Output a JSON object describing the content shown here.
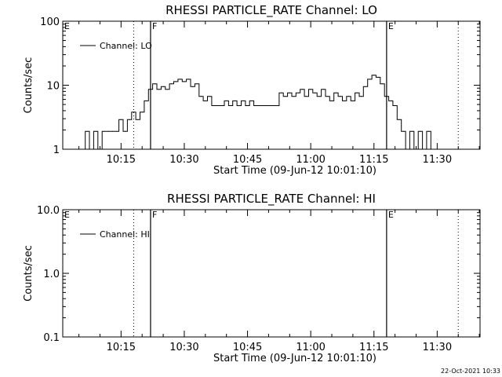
{
  "footer": {
    "timestamp": "22-Oct-2021 10:33"
  },
  "chart_data": [
    {
      "type": "line",
      "title": "RHESSI PARTICLE_RATE Channel: LO",
      "xlabel": "Start Time (09-Jun-12 10:01:10)",
      "ylabel": "Counts/sec",
      "yscale": "log",
      "xlim_minutes": [
        0,
        99
      ],
      "ylim": [
        1,
        100
      ],
      "xticks": [
        "10:15",
        "10:30",
        "10:45",
        "11:00",
        "11:15",
        "11:30"
      ],
      "yticks": [
        "1",
        "10",
        "100"
      ],
      "legend": {
        "label": "Channel: LO",
        "position": "top-left"
      },
      "markers": [
        {
          "label": "E",
          "time": "10:01",
          "style": "none"
        },
        {
          "label": "",
          "time": "10:18",
          "style": "dotted"
        },
        {
          "label": "F",
          "time": "10:22",
          "style": "solid"
        },
        {
          "label": "E",
          "time": "11:18",
          "style": "solid"
        },
        {
          "label": "",
          "time": "11:35",
          "style": "dotted"
        }
      ],
      "series": [
        {
          "name": "Channel: LO",
          "x": [
            "10:06",
            "10:07",
            "10:08",
            "10:09",
            "10:10",
            "10:11",
            "10:12",
            "10:13",
            "10:14",
            "10:15",
            "10:16",
            "10:17",
            "10:18",
            "10:19",
            "10:20",
            "10:21",
            "10:22",
            "10:23",
            "10:24",
            "10:25",
            "10:26",
            "10:27",
            "10:28",
            "10:29",
            "10:30",
            "10:31",
            "10:32",
            "10:33",
            "10:34",
            "10:35",
            "10:36",
            "10:37",
            "10:38",
            "10:39",
            "10:40",
            "10:41",
            "10:42",
            "10:43",
            "10:44",
            "10:45",
            "10:46",
            "10:47",
            "10:48",
            "10:49",
            "10:50",
            "10:51",
            "10:52",
            "10:53",
            "10:54",
            "10:55",
            "10:56",
            "10:57",
            "10:58",
            "10:59",
            "11:00",
            "11:01",
            "11:02",
            "11:03",
            "11:04",
            "11:05",
            "11:06",
            "11:07",
            "11:08",
            "11:09",
            "11:10",
            "11:11",
            "11:12",
            "11:13",
            "11:14",
            "11:15",
            "11:16",
            "11:17",
            "11:18",
            "11:19",
            "11:20",
            "11:21",
            "11:22",
            "11:23",
            "11:24",
            "11:25",
            "11:26",
            "11:27",
            "11:28",
            "11:29",
            "11:30",
            "11:31",
            "11:32",
            "11:33"
          ],
          "values": [
            1,
            1.9,
            1,
            1.9,
            1,
            1.9,
            1.9,
            1.9,
            1.9,
            2.9,
            1.9,
            2.9,
            3.8,
            2.9,
            3.8,
            5.7,
            8.6,
            10.5,
            8.6,
            9.5,
            8.6,
            10.5,
            11.4,
            12.4,
            11.4,
            12.4,
            9.5,
            10.5,
            6.7,
            5.7,
            6.7,
            4.8,
            4.8,
            4.8,
            5.7,
            4.8,
            5.7,
            4.8,
            5.7,
            4.8,
            5.7,
            4.8,
            4.8,
            4.8,
            4.8,
            4.8,
            4.8,
            7.6,
            6.7,
            7.6,
            6.7,
            7.6,
            8.6,
            6.7,
            8.6,
            7.6,
            6.7,
            8.6,
            6.7,
            5.7,
            7.6,
            6.7,
            5.7,
            6.7,
            5.7,
            7.6,
            6.7,
            9.5,
            12.4,
            14.3,
            13.3,
            10.5,
            6.7,
            5.7,
            4.8,
            2.9,
            1.9,
            1,
            1.9,
            1,
            1.9,
            1,
            1.9,
            1,
            1,
            1,
            1,
            1
          ]
        }
      ]
    },
    {
      "type": "line",
      "title": "RHESSI PARTICLE_RATE Channel: HI",
      "xlabel": "Start Time (09-Jun-12 10:01:10)",
      "ylabel": "Counts/sec",
      "yscale": "log",
      "xlim_minutes": [
        0,
        99
      ],
      "ylim": [
        0.1,
        10
      ],
      "xticks": [
        "10:15",
        "10:30",
        "10:45",
        "11:00",
        "11:15",
        "11:30"
      ],
      "yticks": [
        "0.1",
        "1.0",
        "10.0"
      ],
      "legend": {
        "label": "Channel: HI",
        "position": "top-left"
      },
      "markers": [
        {
          "label": "E",
          "time": "10:01",
          "style": "none"
        },
        {
          "label": "",
          "time": "10:18",
          "style": "dotted"
        },
        {
          "label": "F",
          "time": "10:22",
          "style": "solid"
        },
        {
          "label": "E",
          "time": "11:18",
          "style": "solid"
        },
        {
          "label": "",
          "time": "11:35",
          "style": "dotted"
        }
      ],
      "series": [
        {
          "name": "Channel: HI",
          "x": [],
          "values": []
        }
      ]
    }
  ]
}
